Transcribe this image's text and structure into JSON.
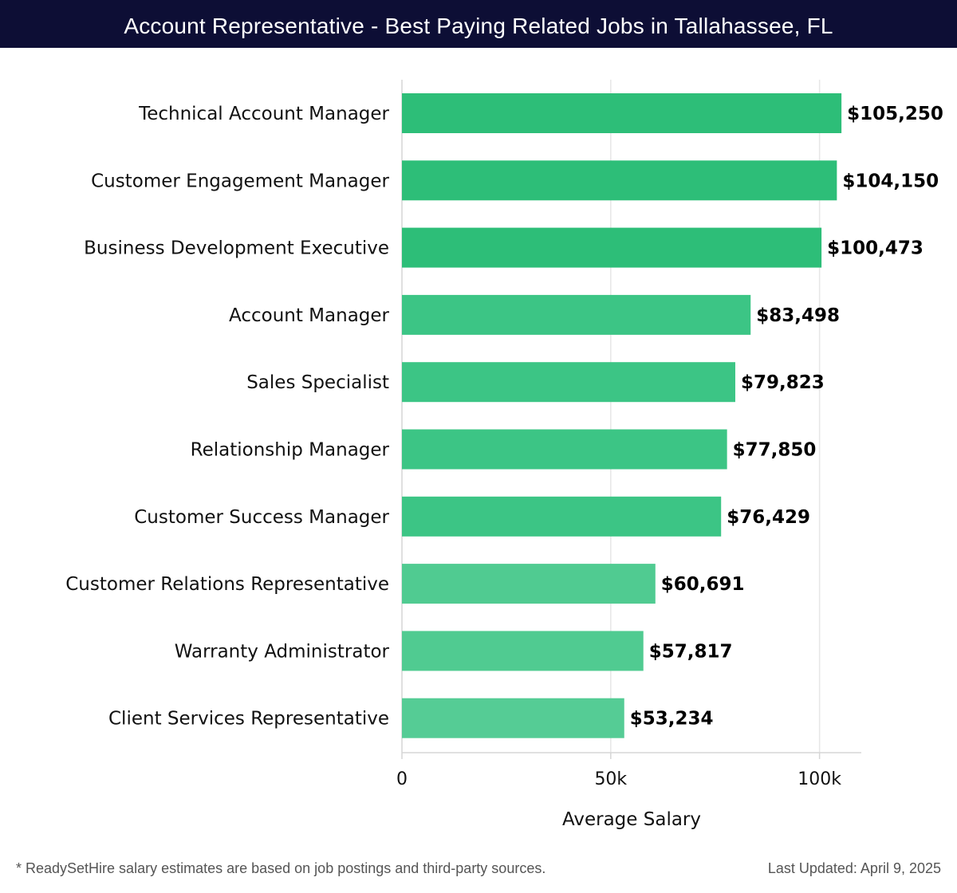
{
  "chart_data": {
    "type": "bar",
    "orientation": "horizontal",
    "title": "Account Representative - Best Paying Related Jobs in Tallahassee, FL",
    "xlabel": "Average Salary",
    "ylabel": "",
    "xlim": [
      0,
      110000
    ],
    "x_ticks": [
      0,
      50000,
      100000
    ],
    "x_tick_labels": [
      "0",
      "50k",
      "100k"
    ],
    "grid": true,
    "categories": [
      "Technical Account Manager",
      "Customer Engagement Manager",
      "Business Development Executive",
      "Account Manager",
      "Sales Specialist",
      "Relationship Manager",
      "Customer Success Manager",
      "Customer Relations Representative",
      "Warranty Administrator",
      "Client Services Representative"
    ],
    "values": [
      105250,
      104150,
      100473,
      83498,
      79823,
      77850,
      76429,
      60691,
      57817,
      53234
    ],
    "value_labels": [
      "$105,250",
      "$104,150",
      "$100,473",
      "$83,498",
      "$79,823",
      "$77,850",
      "$76,429",
      "$60,691",
      "$57,817",
      "$53,234"
    ],
    "bar_colors": [
      "#2dbe78",
      "#2dbe78",
      "#2dbe78",
      "#3cc585",
      "#3cc585",
      "#3cc585",
      "#3cc585",
      "#50cb91",
      "#50cb91",
      "#55cc95"
    ]
  },
  "footer": {
    "note": "* ReadySetHire salary estimates are based on job postings and third-party sources.",
    "updated": "Last Updated: April 9, 2025"
  }
}
